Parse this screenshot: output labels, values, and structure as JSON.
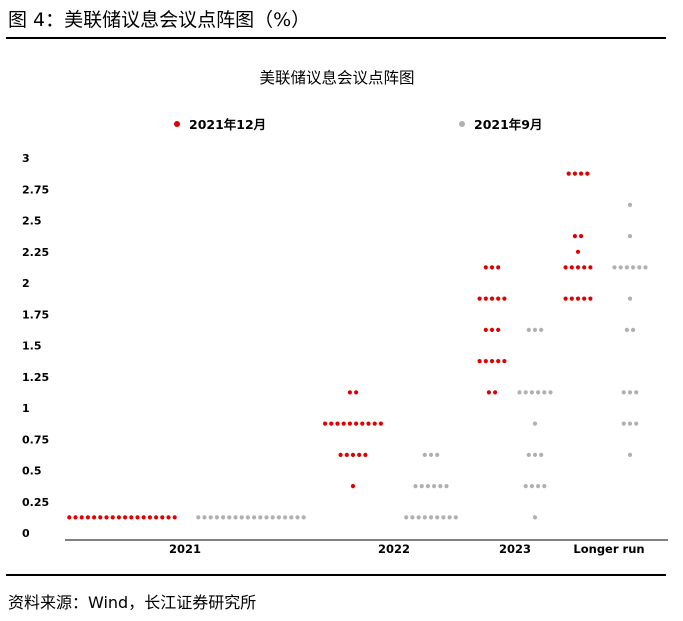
{
  "figure": {
    "title": "图 4：美联储议息会议点阵图（%）",
    "source": "资料来源：Wind，长江证券研究所"
  },
  "colors": {
    "series_dec": "#e00000",
    "series_sep": "#b0b0b0",
    "axis": "#000000"
  },
  "chart_data": {
    "type": "scatter",
    "title": "美联储议息会议点阵图",
    "xlabel": "",
    "ylabel": "",
    "categories": [
      "2021",
      "2022",
      "2023",
      "Longer run"
    ],
    "ylim": [
      0,
      3
    ],
    "yticks": [
      "0",
      "0.25",
      "0.5",
      "0.75",
      "1",
      "1.25",
      "1.5",
      "1.75",
      "2",
      "2.25",
      "2.5",
      "2.75",
      "3"
    ],
    "legend_position": "top",
    "grid": false,
    "series": [
      {
        "name": "2021年12月",
        "color": "#e00000",
        "points": [
          {
            "x": "2021",
            "y": 0.125,
            "count": 18
          },
          {
            "x": "2022",
            "y": 0.375,
            "count": 1
          },
          {
            "x": "2022",
            "y": 0.625,
            "count": 5
          },
          {
            "x": "2022",
            "y": 0.875,
            "count": 10
          },
          {
            "x": "2022",
            "y": 1.125,
            "count": 2
          },
          {
            "x": "2023",
            "y": 1.125,
            "count": 2
          },
          {
            "x": "2023",
            "y": 1.375,
            "count": 5
          },
          {
            "x": "2023",
            "y": 1.625,
            "count": 3
          },
          {
            "x": "2023",
            "y": 1.875,
            "count": 5
          },
          {
            "x": "2023",
            "y": 2.125,
            "count": 3
          },
          {
            "x": "Longer run",
            "y": 1.875,
            "count": 5
          },
          {
            "x": "Longer run",
            "y": 2.125,
            "count": 5
          },
          {
            "x": "Longer run",
            "y": 2.25,
            "count": 1
          },
          {
            "x": "Longer run",
            "y": 2.375,
            "count": 2
          },
          {
            "x": "Longer run",
            "y": 2.875,
            "count": 4
          }
        ]
      },
      {
        "name": "2021年9月",
        "color": "#b0b0b0",
        "points": [
          {
            "x": "2021",
            "y": 0.125,
            "count": 18
          },
          {
            "x": "2022",
            "y": 0.125,
            "count": 9
          },
          {
            "x": "2022",
            "y": 0.375,
            "count": 6
          },
          {
            "x": "2022",
            "y": 0.625,
            "count": 3
          },
          {
            "x": "2023",
            "y": 0.125,
            "count": 1
          },
          {
            "x": "2023",
            "y": 0.375,
            "count": 4
          },
          {
            "x": "2023",
            "y": 0.625,
            "count": 3
          },
          {
            "x": "2023",
            "y": 0.875,
            "count": 1
          },
          {
            "x": "2023",
            "y": 1.125,
            "count": 6
          },
          {
            "x": "2023",
            "y": 1.625,
            "count": 3
          },
          {
            "x": "Longer run",
            "y": 0.625,
            "count": 1
          },
          {
            "x": "Longer run",
            "y": 0.875,
            "count": 3
          },
          {
            "x": "Longer run",
            "y": 1.125,
            "count": 3
          },
          {
            "x": "Longer run",
            "y": 1.625,
            "count": 2
          },
          {
            "x": "Longer run",
            "y": 1.875,
            "count": 1
          },
          {
            "x": "Longer run",
            "y": 2.125,
            "count": 6
          },
          {
            "x": "Longer run",
            "y": 2.375,
            "count": 1
          },
          {
            "x": "Longer run",
            "y": 2.625,
            "count": 1
          }
        ]
      }
    ]
  }
}
